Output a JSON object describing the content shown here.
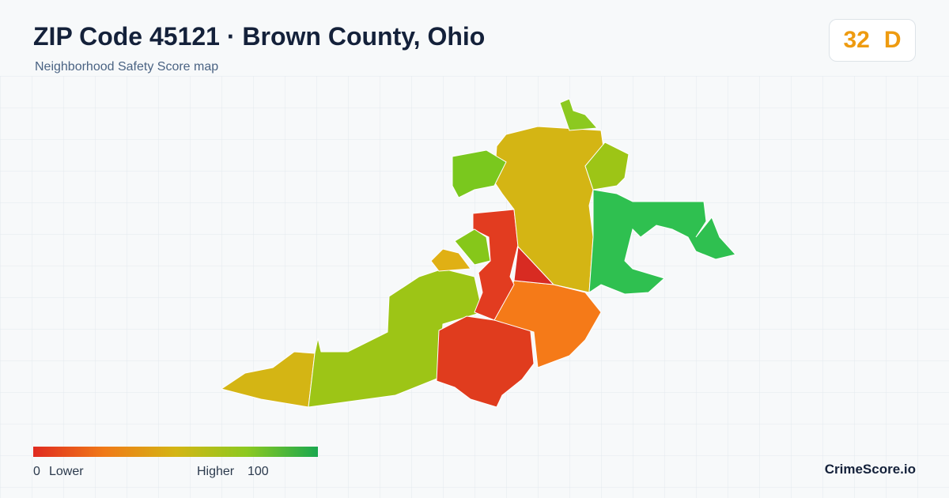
{
  "header": {
    "title": "ZIP Code 45121 · Brown County, Ohio",
    "subtitle": "Neighborhood Safety Score map"
  },
  "score": {
    "value": 32,
    "grade": "D"
  },
  "legend": {
    "min": 0,
    "min_text": "Lower",
    "max_text": "Higher",
    "max": 100
  },
  "brand": "CrimeScore.io"
}
